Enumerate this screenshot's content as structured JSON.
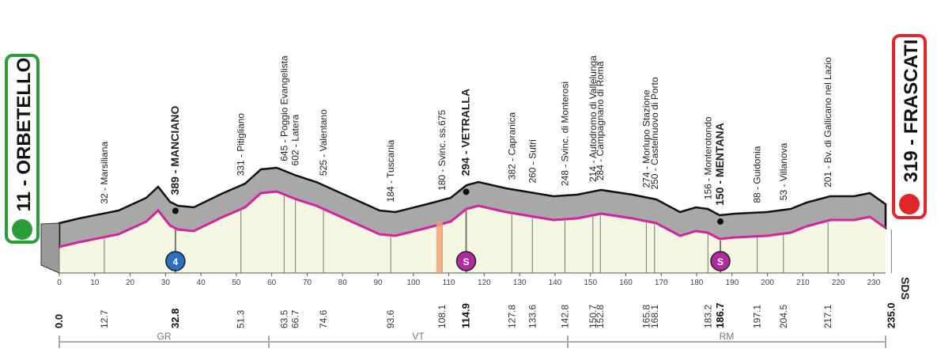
{
  "start": {
    "label": "11 - ORBETELLO",
    "km": "0.0"
  },
  "finish": {
    "label": "319 - FRASCATI",
    "km": "235.0"
  },
  "places": [
    {
      "label": "32 - Marsiliana",
      "km": "12.7"
    },
    {
      "label": "389 - MANCIANO",
      "km": "32.8",
      "major": true
    },
    {
      "label": "331 - Pitigliano",
      "km": "51.3"
    },
    {
      "label": "645 - Poggio Evangelista",
      "km": "63.5"
    },
    {
      "label": "602 - Latera",
      "km": "66.7"
    },
    {
      "label": "525 - Valentano",
      "km": "74.6"
    },
    {
      "label": "184 - Tuscania",
      "km": "93.6"
    },
    {
      "label": "180 - Svinc. ss.675",
      "km": "108.1"
    },
    {
      "label": "294 - VETRALLA",
      "km": "114.9",
      "major": true
    },
    {
      "label": "382 - Capranica",
      "km": "127.8"
    },
    {
      "label": "260 - Sutri",
      "km": "133.6"
    },
    {
      "label": "248 - Svinc. di Monterosi",
      "km": "142.8"
    },
    {
      "label": "214 - Autodromo di Vallelunga",
      "km": "150.7"
    },
    {
      "label": "284 - Campagnano di Roma",
      "km": "152.8"
    },
    {
      "label": "274 - Morlupo Stazione",
      "km": "165.8"
    },
    {
      "label": "250 - Castelnuovo di Porto",
      "km": "168.1"
    },
    {
      "label": "156 - Monterotondo",
      "km": "183.2"
    },
    {
      "label": "150 - MENTANA",
      "km": "186.7",
      "major": true
    },
    {
      "label": "88 - Guidonia",
      "km": "197.1"
    },
    {
      "label": "53 - Villanova",
      "km": "204.5"
    },
    {
      "label": "201 - Bv. di Gallicano nel Lazio",
      "km": "217.1"
    }
  ],
  "axis_ticks": [
    "0",
    "10",
    "20",
    "30",
    "40",
    "50",
    "60",
    "70",
    "80",
    "90",
    "100",
    "110",
    "120",
    "130",
    "140",
    "150",
    "160",
    "170",
    "180",
    "190",
    "200",
    "210",
    "220",
    "230"
  ],
  "regions": [
    "GR",
    "VT",
    "RM"
  ],
  "kom_badge": "4",
  "sprint_badge": "S",
  "logo": "SDS"
}
